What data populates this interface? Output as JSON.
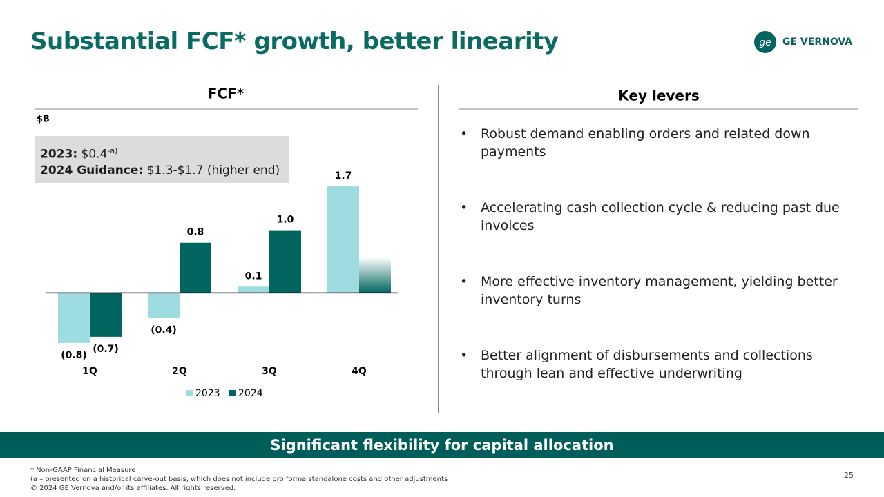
{
  "title": "Substantial FCF* growth, better linearity",
  "logo": "GE VERNOVA",
  "chart_data": {
    "type": "bar",
    "title": "FCF*",
    "unit": "$B",
    "categories": [
      "1Q",
      "2Q",
      "3Q",
      "4Q"
    ],
    "series": [
      {
        "name": "2023",
        "color": "#9fdcdf",
        "values": [
          -0.8,
          -0.4,
          0.1,
          1.7
        ],
        "value_labels": [
          "(0.8)",
          "(0.4)",
          "0.1",
          "1.7"
        ]
      },
      {
        "name": "2024",
        "color": "#00645f",
        "values": [
          -0.7,
          0.8,
          1.0,
          0.57
        ],
        "value_labels": [
          "(0.7)",
          "0.8",
          "1.0",
          null
        ]
      }
    ],
    "ylim": [
      -0.9,
      1.8
    ],
    "legend": "bottom"
  },
  "callout": {
    "line1_label": "2023:",
    "line1_value": "$0.4",
    "line1_note": "-a)",
    "line2_label": "2024 Guidance:",
    "line2_value": "$1.3-$1.7 (higher end)"
  },
  "levers": {
    "title": "Key levers",
    "bullets": [
      "Robust demand enabling orders and related down payments",
      "Accelerating cash collection cycle & reducing past due invoices",
      "More effective inventory management, yielding better inventory turns",
      "Better alignment of disbursements and collections through lean and effective underwriting"
    ]
  },
  "banner": "Significant flexibility for capital allocation",
  "footnotes": [
    "* Non-GAAP Financial Measure",
    "(a – presented on a historical carve-out basis, which does not include pro forma standalone costs and other adjustments",
    "© 2024 GE Vernova and/or its affiliates. All rights reserved."
  ],
  "page_number": "25"
}
